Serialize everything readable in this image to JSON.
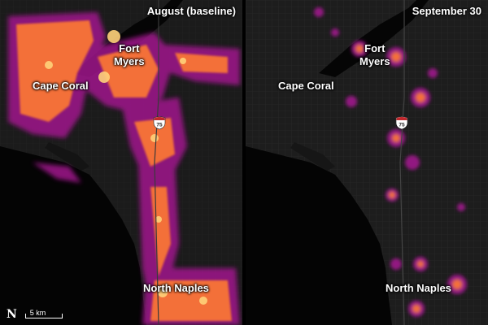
{
  "panels": {
    "left": {
      "title": "August (baseline)"
    },
    "right": {
      "title": "September 30"
    }
  },
  "cities": {
    "fort_myers": "Fort\nMyers",
    "cape_coral": "Cape Coral",
    "north_naples": "North Naples"
  },
  "highway": {
    "shield_number": "75"
  },
  "scale": {
    "label": "5 km",
    "north": "N"
  },
  "colors": {
    "land": "#1b1b1b",
    "water": "#040404",
    "glow_core": "#ffd27a",
    "glow_mid": "#ff7a30",
    "glow_outer": "#a0188c"
  }
}
